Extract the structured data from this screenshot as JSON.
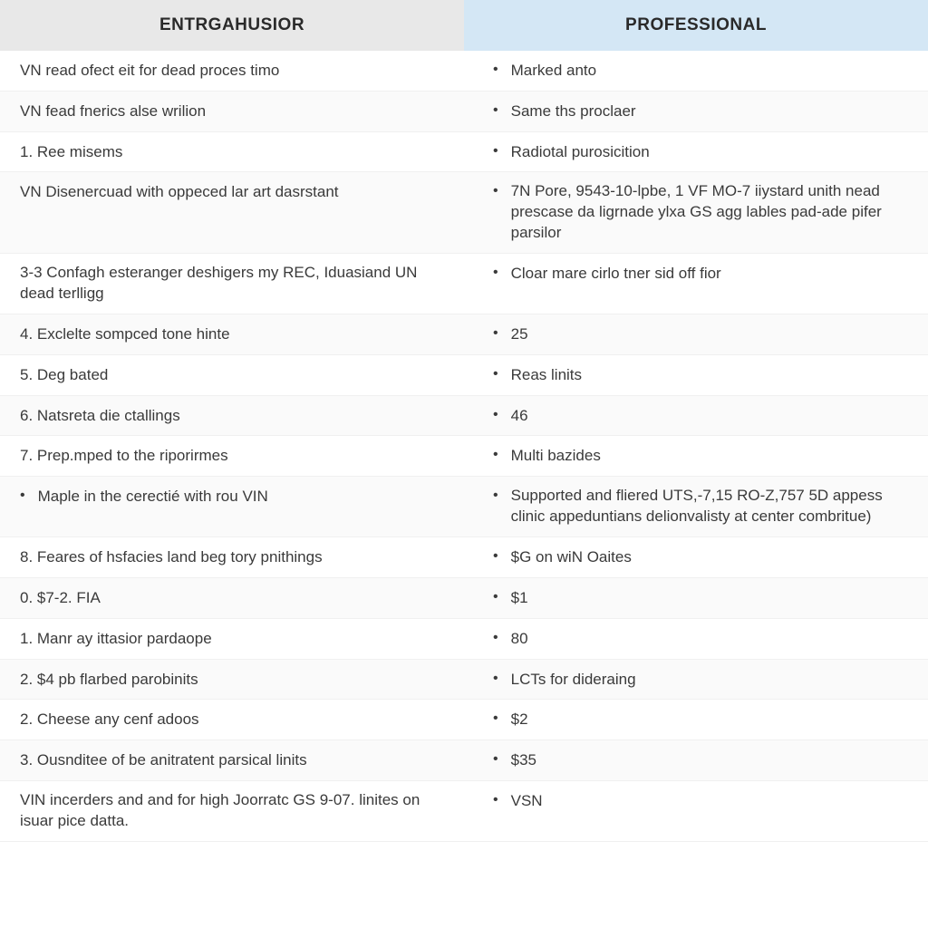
{
  "table": {
    "type": "comparison-table",
    "columns": {
      "left": {
        "header": "ENTRGAHUSIOR",
        "header_bg": "#e8e8e8",
        "header_color": "#2a2a2a"
      },
      "right": {
        "header": "PROFESSIONAL",
        "header_bg": "#d4e7f5",
        "header_color": "#2a2a2a"
      }
    },
    "rows": [
      {
        "left": "VN read ofect eit for dead proces timo",
        "left_bullet": false,
        "right": "Marked anto",
        "right_bullet": true
      },
      {
        "left": "VN fead fnerics alse wrilion",
        "left_bullet": false,
        "right": "Same ths proclaer",
        "right_bullet": true
      },
      {
        "left": "1. Ree misems",
        "left_bullet": false,
        "right": "Radiotal purosicition",
        "right_bullet": true
      },
      {
        "left": "VN Disenercuad with oppeced lar art dasrstant",
        "left_bullet": false,
        "right": "7N Pore, 9543-10-lpbe, 1 VF MO-7 iiystard unith nead prescase da ligrnade ylxa GS agg lables pad-ade pifer parsilor",
        "right_bullet": true,
        "right_multiline": true
      },
      {
        "left": "3-3 Confagh esteranger deshigers my REC, Iduasiand UN dead terlligg",
        "left_bullet": false,
        "left_multiline": true,
        "right": "Cloar mare cirlo tner sid off fior",
        "right_bullet": true
      },
      {
        "left": "4. Exclelte sompced tone hinte",
        "left_bullet": false,
        "right": "25",
        "right_bullet": true
      },
      {
        "left": "5. Deg bated",
        "left_bullet": false,
        "right": "Reas linits",
        "right_bullet": true
      },
      {
        "left": "6. Natsreta die ctallings",
        "left_bullet": false,
        "right": "46",
        "right_bullet": true
      },
      {
        "left": "7. Prep.mped to the riporirmes",
        "left_bullet": false,
        "right": "Multi bazides",
        "right_bullet": true
      },
      {
        "left": "Maple in the cerectié with rou VIN",
        "left_bullet": true,
        "right": "Supported and fliered UTS,-7,15 RO-Z,757 5D appess clinic appeduntians delionvalisty at center combritue)",
        "right_bullet": true,
        "right_multiline": true
      },
      {
        "left": "8. Feares of hsfacies land beg tory pnithings",
        "left_bullet": false,
        "right": "$G on wiN Oaites",
        "right_bullet": true
      },
      {
        "left": "0. $7-2. FIA",
        "left_bullet": false,
        "right": "$1",
        "right_bullet": true
      },
      {
        "left": "1. Manr ay ittasior pardaope",
        "left_bullet": false,
        "right": "80",
        "right_bullet": true
      },
      {
        "left": "2. $4 pb flarbed parobinits",
        "left_bullet": false,
        "right": "LCTs for dideraing",
        "right_bullet": true
      },
      {
        "left": "2. Cheese any cenf adoos",
        "left_bullet": false,
        "right": "$2",
        "right_bullet": true
      },
      {
        "left": "3. Ousnditee of be anitratent parsical linits",
        "left_bullet": false,
        "right": "$35",
        "right_bullet": true
      },
      {
        "left": "VIN incerders and and for high Joorratc GS 9-07. linites on isuar pice datta.",
        "left_bullet": false,
        "left_multiline": true,
        "right": "VSN",
        "right_bullet": true
      }
    ],
    "styling": {
      "font_family": "Segoe UI, Arial, sans-serif",
      "header_fontsize": 19,
      "header_fontweight": 700,
      "body_fontsize": 17,
      "text_color": "#3a3a3a",
      "row_border_color": "#f0f0f0",
      "row_alt_bg": "#fafafa",
      "background_color": "#ffffff",
      "bullet_char": "•"
    }
  }
}
